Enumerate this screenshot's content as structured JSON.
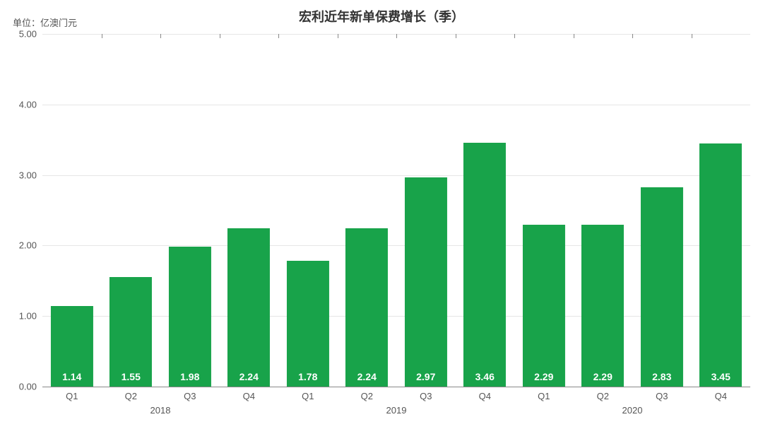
{
  "chart": {
    "type": "bar",
    "title": "宏利近年新单保费增长（季）",
    "title_fontsize": 18,
    "unit_label": "单位：亿澳门元",
    "unit_fontsize": 13,
    "background_color": "#ffffff",
    "grid_color": "#e6e6e6",
    "axis_color": "#888888",
    "tick_label_color": "#555555",
    "tick_fontsize": 13,
    "value_label_fontsize": 14,
    "value_label_color": "#ffffff",
    "bar_color": "#18a34a",
    "bar_width_ratio": 0.72,
    "ylim": [
      0.0,
      5.0
    ],
    "ytick_step": 1.0,
    "yticks": [
      "0.00",
      "1.00",
      "2.00",
      "3.00",
      "4.00",
      "5.00"
    ],
    "year_groups": [
      {
        "label": "2018",
        "count": 4
      },
      {
        "label": "2019",
        "count": 4
      },
      {
        "label": "2020",
        "count": 4
      }
    ],
    "data": [
      {
        "quarter": "Q1",
        "value": 1.14,
        "label": "1.14"
      },
      {
        "quarter": "Q2",
        "value": 1.55,
        "label": "1.55"
      },
      {
        "quarter": "Q3",
        "value": 1.98,
        "label": "1.98"
      },
      {
        "quarter": "Q4",
        "value": 2.24,
        "label": "2.24"
      },
      {
        "quarter": "Q1",
        "value": 1.78,
        "label": "1.78"
      },
      {
        "quarter": "Q2",
        "value": 2.24,
        "label": "2.24"
      },
      {
        "quarter": "Q3",
        "value": 2.97,
        "label": "2.97"
      },
      {
        "quarter": "Q4",
        "value": 3.46,
        "label": "3.46"
      },
      {
        "quarter": "Q1",
        "value": 2.29,
        "label": "2.29"
      },
      {
        "quarter": "Q2",
        "value": 2.29,
        "label": "2.29"
      },
      {
        "quarter": "Q3",
        "value": 2.83,
        "label": "2.83"
      },
      {
        "quarter": "Q4",
        "value": 3.45,
        "label": "3.45"
      }
    ]
  }
}
